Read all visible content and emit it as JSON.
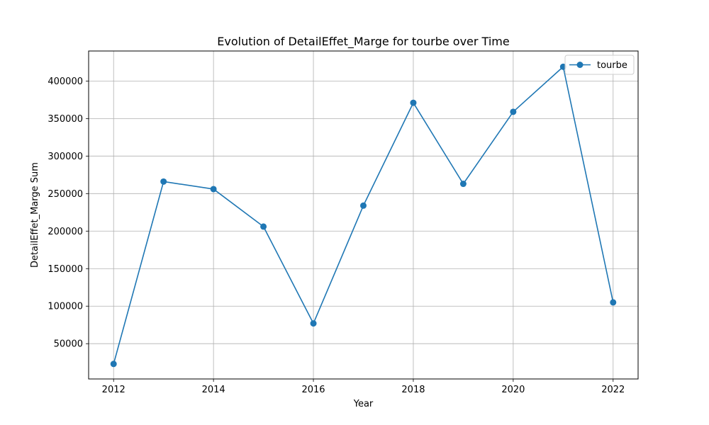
{
  "chart_data": {
    "type": "line",
    "title": "Evolution of DetailEffet_Marge for tourbe over Time",
    "xlabel": "Year",
    "ylabel": "DetailEffet_Marge Sum",
    "xlim": [
      2011.5,
      2022.5
    ],
    "ylim": [
      3000,
      440000
    ],
    "x_ticks": [
      2012,
      2014,
      2016,
      2018,
      2020,
      2022
    ],
    "y_ticks": [
      50000,
      100000,
      150000,
      200000,
      250000,
      300000,
      350000,
      400000
    ],
    "grid": true,
    "legend_position": "top-right",
    "series": [
      {
        "name": "tourbe",
        "color": "#1f77b4",
        "marker": "circle",
        "x": [
          2012,
          2013,
          2014,
          2015,
          2016,
          2017,
          2018,
          2019,
          2020,
          2021,
          2022
        ],
        "y": [
          23000,
          266000,
          256000,
          206000,
          77000,
          234000,
          371000,
          263000,
          359000,
          419000,
          105000
        ]
      }
    ]
  }
}
